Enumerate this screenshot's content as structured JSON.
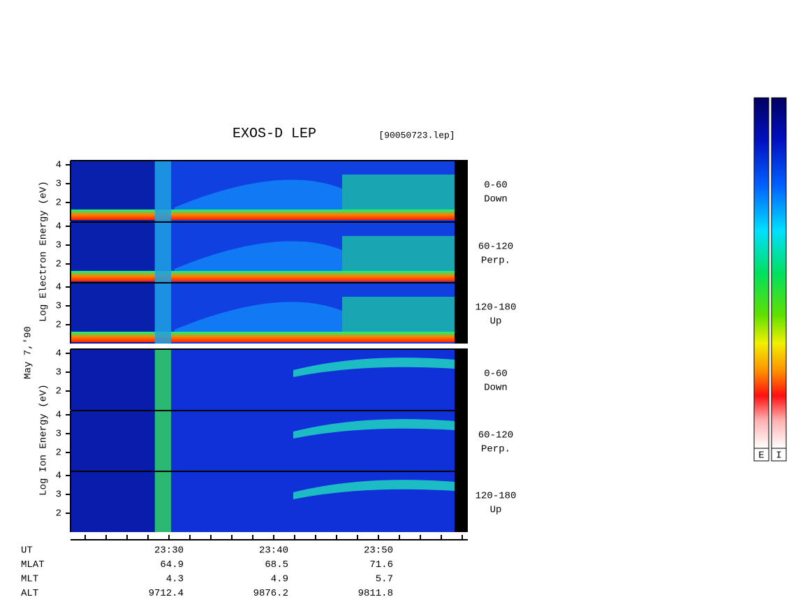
{
  "title": "EXOS-D LEP",
  "file": "[90050723.lep]",
  "date": "May  7,'90",
  "electron_axis_label": "Log  Electron  Energy (eV)",
  "ion_axis_label": "Log  Ion  Energy (eV)",
  "energy_ticks": [
    "4",
    "3",
    "2"
  ],
  "electron_panels": [
    {
      "angle": "0-60",
      "direction": "Down"
    },
    {
      "angle": "60-120",
      "direction": "Perp."
    },
    {
      "angle": "120-180",
      "direction": "Up"
    }
  ],
  "ion_panels": [
    {
      "angle": "0-60",
      "direction": "Down"
    },
    {
      "angle": "60-120",
      "direction": "Perp."
    },
    {
      "angle": "120-180",
      "direction": "Up"
    }
  ],
  "rows": [
    {
      "label": "UT",
      "values": [
        "23:30",
        "23:40",
        "23:50"
      ]
    },
    {
      "label": "MLAT",
      "values": [
        "64.9",
        "68.5",
        "71.6"
      ]
    },
    {
      "label": "MLT",
      "values": [
        "4.3",
        "4.9",
        "5.7"
      ]
    },
    {
      "label": "ALT",
      "values": [
        "9712.4",
        "9876.2",
        "9811.8"
      ]
    }
  ],
  "colorbar_labels": [
    "E",
    "I"
  ]
}
